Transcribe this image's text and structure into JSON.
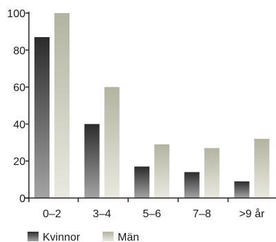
{
  "chart_data": {
    "type": "bar",
    "title": "",
    "xlabel": "",
    "ylabel": "",
    "categories": [
      "0–2",
      "3–4",
      "5–6",
      "7–8",
      ">9 år"
    ],
    "series": [
      {
        "name": "Kvinnor",
        "values": [
          87,
          40,
          17,
          14,
          9
        ],
        "color": "#3a3a3a"
      },
      {
        "name": "Män",
        "values": [
          100,
          60,
          29,
          27,
          32
        ],
        "color": "#c8c8b4"
      }
    ],
    "ylim": [
      0,
      100
    ],
    "yticks": [
      0,
      20,
      40,
      60,
      80,
      100
    ],
    "grid": false,
    "legend_position": "bottom-left"
  }
}
